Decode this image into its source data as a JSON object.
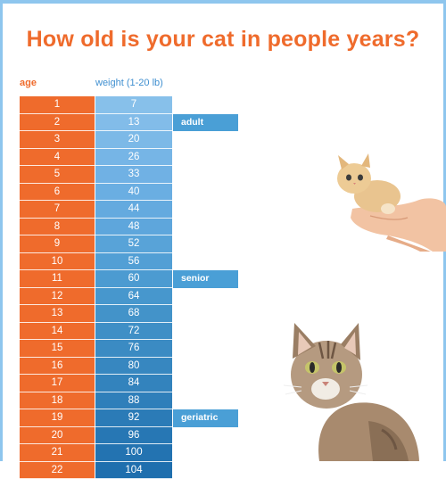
{
  "title": "How old is your cat in people years?",
  "headers": {
    "age": "age",
    "weight": "weight (1-20 lb)"
  },
  "rows": [
    {
      "age": "1",
      "people_years": "7",
      "stage": "",
      "color": "#87c0ea"
    },
    {
      "age": "2",
      "people_years": "13",
      "stage": "adult",
      "color": "#82bce9"
    },
    {
      "age": "3",
      "people_years": "20",
      "stage": "",
      "color": "#7cb9e7"
    },
    {
      "age": "4",
      "people_years": "26",
      "stage": "",
      "color": "#76b5e6"
    },
    {
      "age": "5",
      "people_years": "33",
      "stage": "",
      "color": "#70b1e4"
    },
    {
      "age": "6",
      "people_years": "40",
      "stage": "",
      "color": "#6aaee2"
    },
    {
      "age": "7",
      "people_years": "44",
      "stage": "",
      "color": "#64aadf"
    },
    {
      "age": "8",
      "people_years": "48",
      "stage": "",
      "color": "#5ea6dc"
    },
    {
      "age": "9",
      "people_years": "52",
      "stage": "",
      "color": "#58a3d8"
    },
    {
      "age": "10",
      "people_years": "56",
      "stage": "",
      "color": "#529fd5"
    },
    {
      "age": "11",
      "people_years": "60",
      "stage": "senior",
      "color": "#4c9bd1"
    },
    {
      "age": "12",
      "people_years": "64",
      "stage": "",
      "color": "#4797cd"
    },
    {
      "age": "13",
      "people_years": "68",
      "stage": "",
      "color": "#4393c9"
    },
    {
      "age": "14",
      "people_years": "72",
      "stage": "",
      "color": "#3f8fc6"
    },
    {
      "age": "15",
      "people_years": "76",
      "stage": "",
      "color": "#3b8bc3"
    },
    {
      "age": "16",
      "people_years": "80",
      "stage": "",
      "color": "#3787c0"
    },
    {
      "age": "17",
      "people_years": "84",
      "stage": "",
      "color": "#3383bd"
    },
    {
      "age": "18",
      "people_years": "88",
      "stage": "",
      "color": "#2f7fba"
    },
    {
      "age": "19",
      "people_years": "92",
      "stage": "geriatric",
      "color": "#2b7bb7"
    },
    {
      "age": "20",
      "people_years": "96",
      "stage": "",
      "color": "#2777b4"
    },
    {
      "age": "21",
      "people_years": "100",
      "stage": "",
      "color": "#2373b1"
    },
    {
      "age": "22",
      "people_years": "104",
      "stage": "",
      "color": "#1f6fae"
    }
  ],
  "stage_color": "#4a9fd6",
  "accent": "#ef6b2c",
  "frame_color": "#8ec6ee"
}
